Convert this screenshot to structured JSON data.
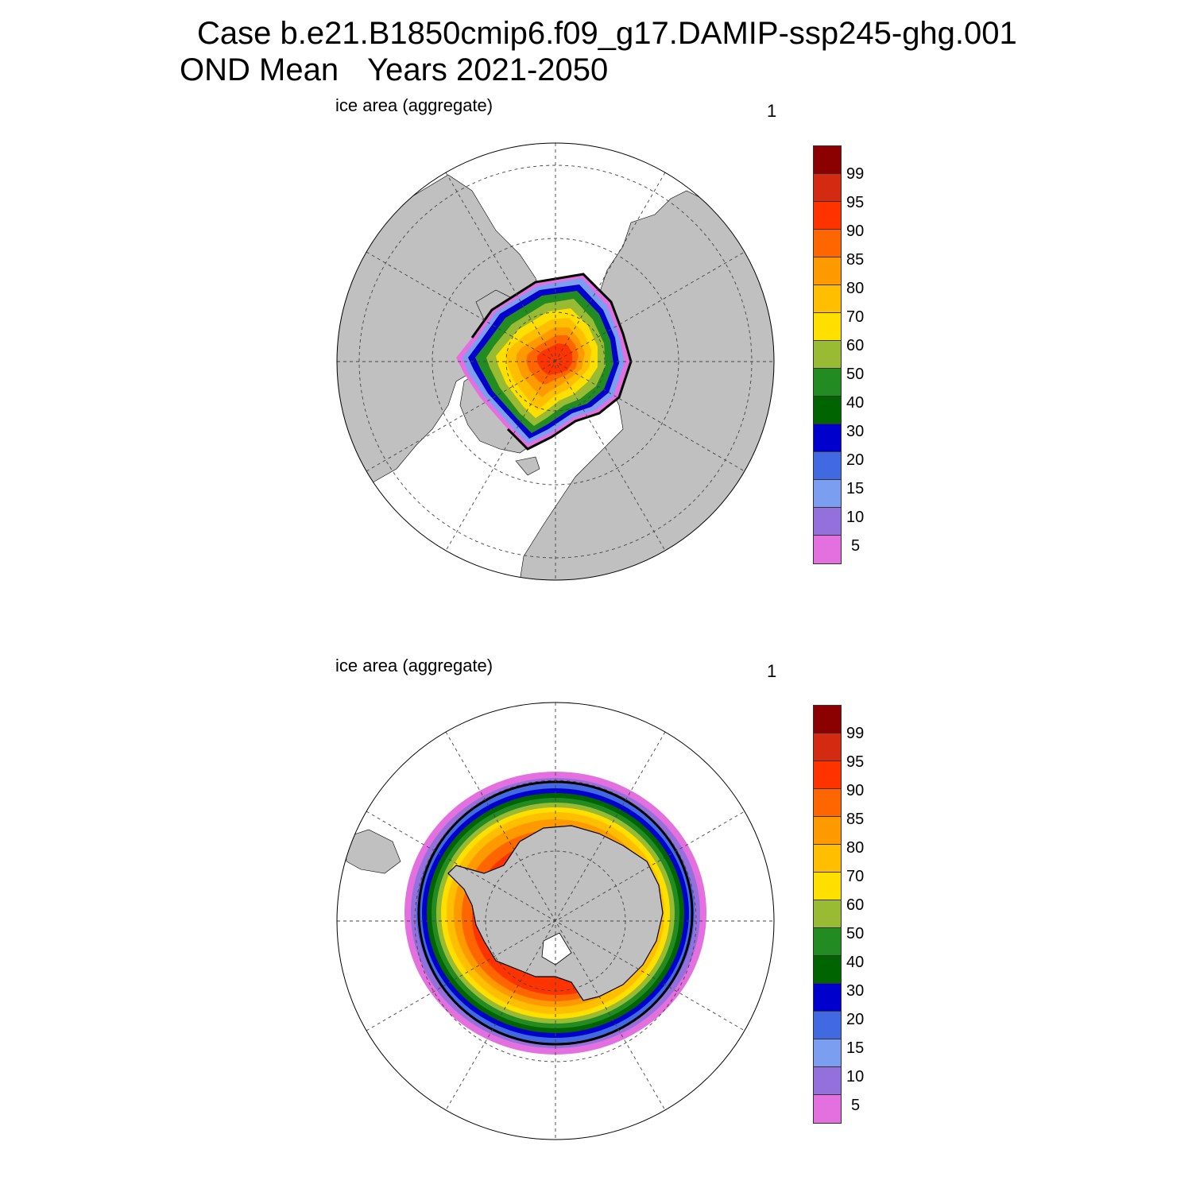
{
  "title": {
    "line1": "Case b.e21.B1850cmip6.f09_g17.DAMIP-ssp245-ghg.001",
    "line2_season": "OND Mean",
    "line2_years": "Years 2021-2050"
  },
  "panels": [
    {
      "id": "north",
      "label": "ice area  (aggregate)",
      "number": "1"
    },
    {
      "id": "south",
      "label": "ice area  (aggregate)",
      "number": "1"
    }
  ],
  "colorbar": {
    "labels": [
      "99",
      "95",
      "90",
      "85",
      "80",
      "70",
      "60",
      "50",
      "40",
      "30",
      "20",
      "15",
      "10",
      "5"
    ],
    "colors": [
      "#8b0000",
      "#d42a12",
      "#ff3300",
      "#ff6600",
      "#ff9900",
      "#ffbf00",
      "#ffdf00",
      "#99bb33",
      "#228b22",
      "#006400",
      "#0000cc",
      "#4169e1",
      "#7b9ef0",
      "#9370db",
      "#e46fdf"
    ]
  },
  "map_colors": {
    "land": "#c0c0c0",
    "ocean": "#ffffff",
    "grid": "#444444",
    "extent_line": "#000000"
  }
}
